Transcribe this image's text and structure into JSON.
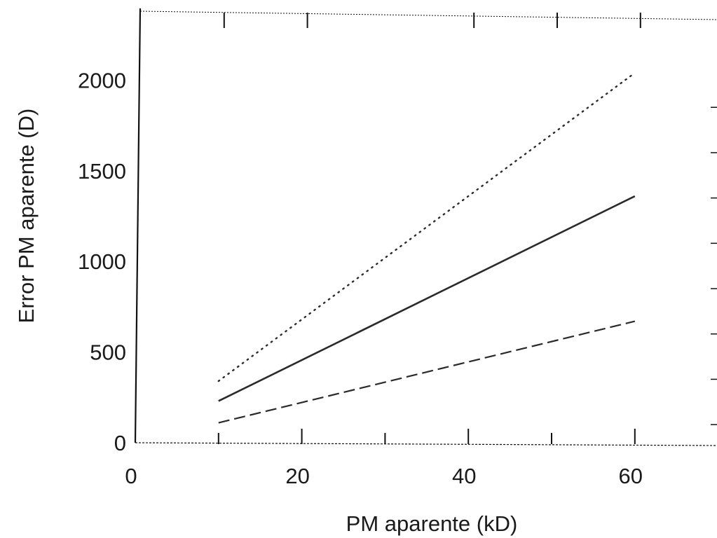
{
  "chart_data": {
    "type": "line",
    "title": "",
    "xlabel": "PM aparente (kD)",
    "ylabel": "Error PM aparente (D)",
    "xlim": [
      0,
      70
    ],
    "ylim": [
      0,
      2400
    ],
    "xticks": [
      0,
      20,
      40,
      60
    ],
    "xtick_labels": [
      "0",
      "20",
      "40",
      "60"
    ],
    "yticks": [
      0,
      500,
      1000,
      1500,
      2000
    ],
    "ytick_labels": [
      "0",
      "500",
      "1000",
      "1500",
      "2000"
    ],
    "grid": false,
    "legend": "none",
    "series": [
      {
        "style": "dotted",
        "x": [
          10,
          60
        ],
        "y": [
          340,
          2040
        ]
      },
      {
        "style": "solid",
        "x": [
          10,
          60
        ],
        "y": [
          230,
          1360
        ]
      },
      {
        "style": "dashed",
        "x": [
          10,
          60
        ],
        "y": [
          110,
          670
        ]
      }
    ],
    "colors": {
      "line": "#2a2a2a",
      "axis": "#111111"
    }
  }
}
